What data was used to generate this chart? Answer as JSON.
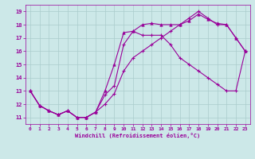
{
  "xlabel": "Windchill (Refroidissement éolien,°C)",
  "bg_color": "#cce8e8",
  "grid_color": "#aacccc",
  "line_color": "#990099",
  "xlim": [
    -0.5,
    23.5
  ],
  "ylim": [
    10.5,
    19.5
  ],
  "xticks": [
    0,
    1,
    2,
    3,
    4,
    5,
    6,
    7,
    8,
    9,
    10,
    11,
    12,
    13,
    14,
    15,
    16,
    17,
    18,
    19,
    20,
    21,
    22,
    23
  ],
  "yticks": [
    11,
    12,
    13,
    14,
    15,
    16,
    17,
    18,
    19
  ],
  "line1_x": [
    0,
    1,
    2,
    3,
    4,
    5,
    6,
    7,
    8,
    9,
    10,
    11,
    12,
    13,
    14,
    15,
    16,
    17,
    18,
    19,
    20,
    21,
    22,
    23
  ],
  "line1_y": [
    13.0,
    11.9,
    11.5,
    11.2,
    11.5,
    11.0,
    11.0,
    11.4,
    12.7,
    13.4,
    16.5,
    17.5,
    17.2,
    17.2,
    17.2,
    16.5,
    15.5,
    15.0,
    14.5,
    14.0,
    13.5,
    13.0,
    13.0,
    16.0
  ],
  "line2_x": [
    0,
    1,
    2,
    3,
    4,
    5,
    6,
    7,
    8,
    9,
    10,
    11,
    12,
    13,
    14,
    15,
    16,
    17,
    18,
    19,
    20,
    21,
    22,
    23
  ],
  "line2_y": [
    13.0,
    11.9,
    11.5,
    11.2,
    11.5,
    11.0,
    11.0,
    11.4,
    13.0,
    15.0,
    17.4,
    17.5,
    18.0,
    18.1,
    18.0,
    18.0,
    18.0,
    18.3,
    18.8,
    18.4,
    18.1,
    18.0,
    17.0,
    16.0
  ],
  "line3_x": [
    0,
    1,
    2,
    3,
    4,
    5,
    6,
    7,
    8,
    9,
    10,
    11,
    12,
    13,
    14,
    15,
    16,
    17,
    18,
    19,
    20,
    21,
    22,
    23
  ],
  "line3_y": [
    13.0,
    11.9,
    11.5,
    11.2,
    11.5,
    11.0,
    11.0,
    11.4,
    12.0,
    12.8,
    14.5,
    15.5,
    16.0,
    16.5,
    17.0,
    17.5,
    18.0,
    18.5,
    19.0,
    18.5,
    18.0,
    18.0,
    17.0,
    16.0
  ]
}
